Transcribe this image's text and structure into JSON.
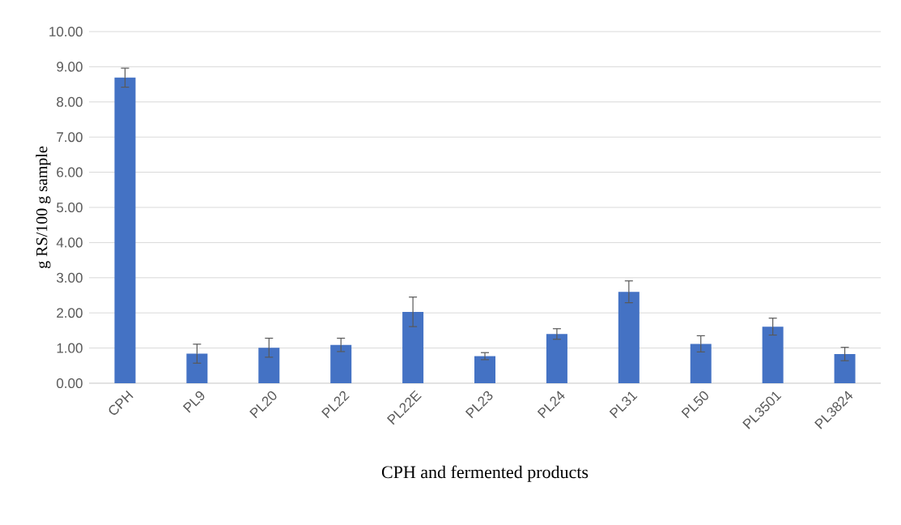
{
  "chart_data": {
    "type": "bar",
    "xlabel": "CPH and fermented products",
    "ylabel": "g RS/100 g sample",
    "categories": [
      "CPH",
      "PL9",
      "PL20",
      "PL22",
      "PL22E",
      "PL23",
      "PL24",
      "PL31",
      "PL50",
      "PL3501",
      "PL3824"
    ],
    "values": [
      8.69,
      0.84,
      1.01,
      1.09,
      2.03,
      0.77,
      1.4,
      2.6,
      1.12,
      1.61,
      0.83
    ],
    "errors": [
      0.27,
      0.27,
      0.27,
      0.19,
      0.42,
      0.1,
      0.15,
      0.31,
      0.23,
      0.24,
      0.19
    ],
    "color": "#4472c4",
    "ylim": [
      0,
      10
    ],
    "yticks": [
      {
        "value": 0,
        "label": "0.00"
      },
      {
        "value": 1,
        "label": "1.00"
      },
      {
        "value": 2,
        "label": "2.00"
      },
      {
        "value": 3,
        "label": "3.00"
      },
      {
        "value": 4,
        "label": "4.00"
      },
      {
        "value": 5,
        "label": "5.00"
      },
      {
        "value": 6,
        "label": "6.00"
      },
      {
        "value": 7,
        "label": "7.00"
      },
      {
        "value": 8,
        "label": "8.00"
      },
      {
        "value": 9,
        "label": "9.00"
      },
      {
        "value": 10,
        "label": "10.00"
      }
    ],
    "grid": "y"
  }
}
